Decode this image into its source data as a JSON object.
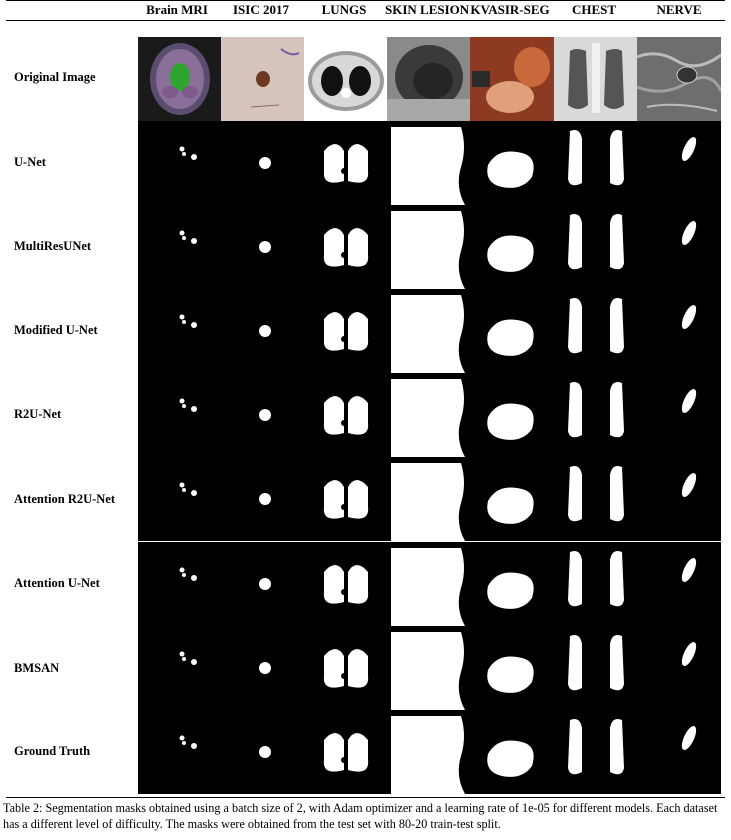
{
  "columns": [
    "Brain MRI",
    "ISIC 2017",
    "LUNGS",
    "SKIN LESION",
    "KVASIR-SEG",
    "CHEST",
    "NERVE"
  ],
  "rows": [
    "Original Image",
    "U-Net",
    "MultiResUNet",
    "Modified U-Net",
    "R2U-Net",
    "Attention R2U-Net",
    "Attention U-Net",
    "BMSAN",
    "Ground Truth"
  ],
  "caption": "Table 2: Segmentation masks obtained using a batch size of 2, with Adam optimizer and a learning rate of 1e-05 for different models. Each dataset has a different level of difficulty. The masks were obtained from the test set with 80-20 train-test split."
}
